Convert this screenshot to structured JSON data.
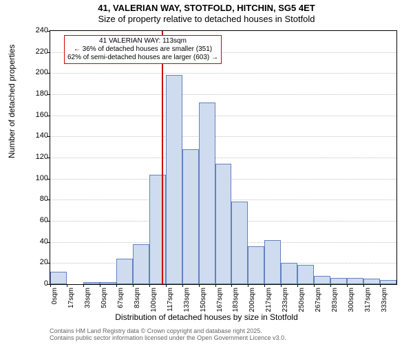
{
  "title_line1": "41, VALERIAN WAY, STOTFOLD, HITCHIN, SG5 4ET",
  "title_line2": "Size of property relative to detached houses in Stotfold",
  "y_axis_label": "Number of detached properties",
  "x_axis_label": "Distribution of detached houses by size in Stotfold",
  "histogram": {
    "type": "histogram",
    "bar_fill": "#cfdcef",
    "bar_stroke": "#6080c0",
    "marker_color": "#d00000",
    "callout_border": "#d00000",
    "grid_color": "#c0c0c0",
    "background": "#ffffff",
    "ylim": [
      0,
      240
    ],
    "yticks": [
      0,
      20,
      40,
      60,
      80,
      100,
      120,
      140,
      160,
      180,
      200,
      220,
      240
    ],
    "x_categories": [
      "0sqm",
      "17sqm",
      "33sqm",
      "50sqm",
      "67sqm",
      "83sqm",
      "100sqm",
      "117sqm",
      "133sqm",
      "150sqm",
      "167sqm",
      "183sqm",
      "200sqm",
      "217sqm",
      "233sqm",
      "250sqm",
      "267sqm",
      "283sqm",
      "300sqm",
      "317sqm",
      "333sqm"
    ],
    "values": [
      12,
      0,
      2,
      2,
      24,
      38,
      104,
      198,
      128,
      172,
      114,
      78,
      36,
      42,
      20,
      18,
      8,
      6,
      6,
      5,
      4
    ],
    "marker_x_sqm": 113,
    "callout": {
      "line1": "41 VALERIAN WAY: 113sqm",
      "line2": "← 36% of detached houses are smaller (351)",
      "line3": "62% of semi-detached houses are larger (603) →"
    }
  },
  "footer": {
    "line1": "Contains HM Land Registry data © Crown copyright and database right 2025.",
    "line2": "Contains public sector information licensed under the Open Government Licence v3.0."
  }
}
